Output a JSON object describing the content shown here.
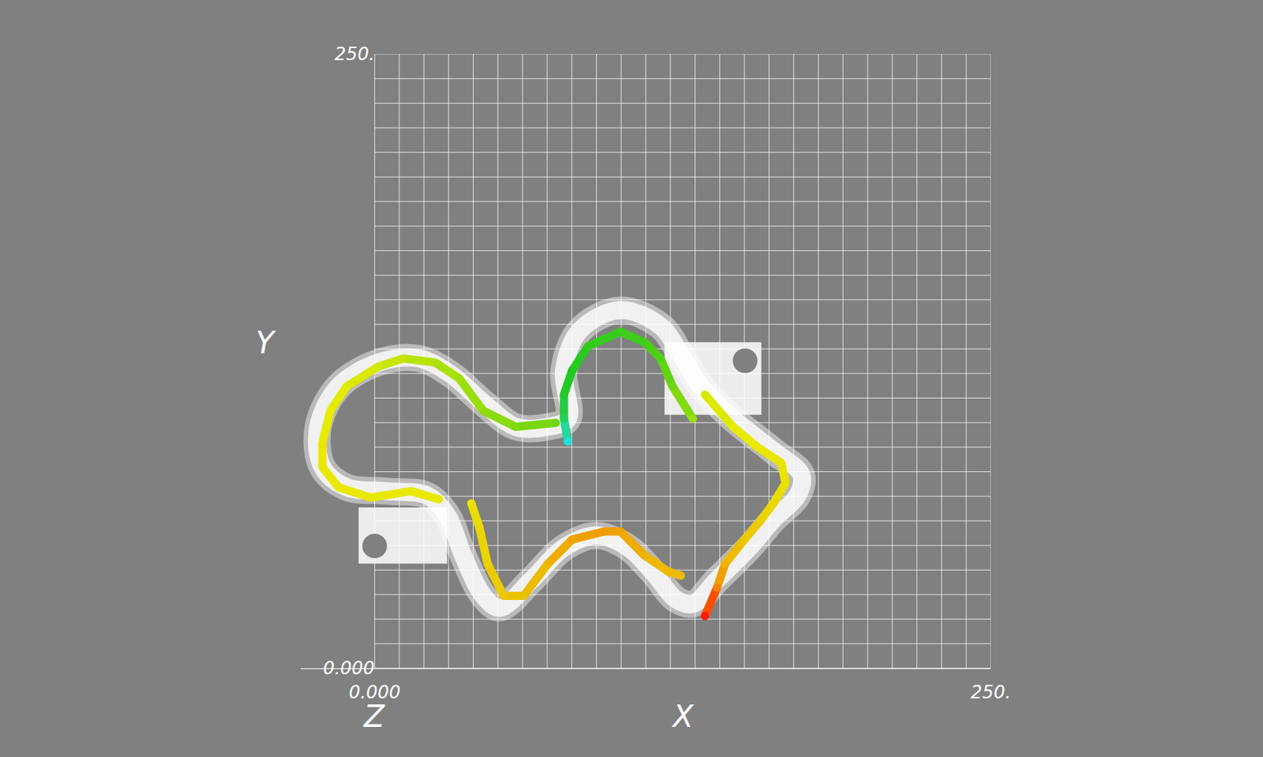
{
  "chart_data": {
    "type": "scatter",
    "xlabel": "X",
    "ylabel": "Y",
    "zlabel": "Z",
    "xlim": [
      -30,
      250
    ],
    "ylim": [
      0,
      250
    ],
    "xticks": [
      {
        "value": 0,
        "label": "0.000"
      },
      {
        "value": 250,
        "label": "250."
      }
    ],
    "yticks": [
      {
        "value": 0,
        "label": "0.000"
      },
      {
        "value": 250,
        "label": "250."
      }
    ],
    "grid": true,
    "grid_lines": [
      0,
      10,
      20,
      30,
      40,
      50,
      60,
      70,
      80,
      90,
      100,
      110,
      120,
      130,
      140,
      150,
      160,
      170,
      180,
      190,
      200,
      210,
      220,
      230,
      240,
      250
    ],
    "track": {
      "color": "#ffffff",
      "x": [
        78.4,
        76.8,
        83.3,
        99.7,
        116.0,
        124.2,
        132.4,
        145.4,
        161.8,
        173.2,
        171.6,
        161.8,
        152.0,
        138.9,
        129.1,
        122.5,
        112.7,
        102.9,
        89.9,
        76.8,
        63.7,
        50.7,
        44.1,
        35.9,
        29.4,
        21.2,
        4.9,
        -11.4,
        -21.2,
        -22.9,
        -14.7,
        1.6,
        18.0,
        31.0,
        44.1,
        57.2,
        70.3,
        78.4
      ],
      "y": [
        101.6,
        121.2,
        137.6,
        145.8,
        139.3,
        127.8,
        114.7,
        101.6,
        88.5,
        78.6,
        70.4,
        60.6,
        49.1,
        36.0,
        26.2,
        27.9,
        39.3,
        49.1,
        54.1,
        49.1,
        36.0,
        24.6,
        29.5,
        45.9,
        62.3,
        70.4,
        72.1,
        73.7,
        81.9,
        98.3,
        114.7,
        124.5,
        126.1,
        119.6,
        108.1,
        98.3,
        98.3,
        101.6
      ]
    },
    "mounts": [
      {
        "x": [
          117.6,
          156.9
        ],
        "y": [
          103.2,
          132.7
        ],
        "hole_x": 150.3,
        "hole_y": 125.2,
        "hole_r": 5
      },
      {
        "x": [
          -6.5,
          29.4
        ],
        "y": [
          42.6,
          65.5
        ],
        "hole_x": 0,
        "hole_y": 49.8,
        "hole_r": 5
      }
    ],
    "colorscale": [
      [
        0,
        "#22e0d8"
      ],
      [
        0.3,
        "#22c81e"
      ],
      [
        0.55,
        "#e8ec00"
      ],
      [
        0.75,
        "#f0a000"
      ],
      [
        1,
        "#ff1a00"
      ]
    ],
    "series": [
      {
        "x": [
          78.4,
          76.8,
          76.8,
          80.1,
          86.6,
          99.7,
          109.5,
          116.0,
          120.9,
          129.1,
          null,
          134.0,
          145.4,
          155.2,
          165.0,
          166.7,
          161.8,
          156.9,
          148.7,
          142.2,
          138.9,
          134.0,
          null,
          73.5,
          57.2,
          44.1,
          34.3,
          24.5,
          11.4,
          1.6,
          -11.4,
          -18.0,
          -21.2,
          -21.2,
          -14.7,
          -1.6,
          14.7,
          26.1,
          null,
          39.2,
          42.5,
          45.8,
          52.3,
          60.5,
          70.3,
          80.1,
          93.1,
          99.7,
          109.5,
          119.3,
          124.2
        ],
        "y": [
          92.3,
          101.6,
          111.4,
          121.2,
          131.1,
          137.0,
          132.7,
          126.1,
          114.7,
          101.6,
          null,
          111.4,
          98.3,
          90.1,
          83.6,
          75.4,
          67.2,
          60.6,
          50.8,
          42.6,
          32.8,
          21.3,
          null,
          99.9,
          98.3,
          104.8,
          118.0,
          124.5,
          126.1,
          122.9,
          114.7,
          104.8,
          91.7,
          81.9,
          73.7,
          69.5,
          72.1,
          68.8,
          null,
          67.2,
          57.3,
          42.6,
          29.5,
          29.5,
          42.6,
          52.4,
          55.7,
          55.7,
          45.9,
          39.3,
          37.7
        ],
        "color_values": [
          0.0,
          0.2,
          0.28,
          0.3,
          0.32,
          0.33,
          0.34,
          0.36,
          0.4,
          0.45,
          null,
          0.52,
          0.55,
          0.56,
          0.57,
          0.58,
          0.6,
          0.62,
          0.66,
          0.7,
          0.8,
          1.0,
          null,
          0.4,
          0.42,
          0.44,
          0.46,
          0.48,
          0.5,
          0.52,
          0.54,
          0.55,
          0.56,
          0.56,
          0.56,
          0.56,
          0.56,
          0.56,
          null,
          0.58,
          0.6,
          0.62,
          0.65,
          0.66,
          0.7,
          0.74,
          0.76,
          0.74,
          0.7,
          0.68,
          0.68
        ]
      }
    ]
  }
}
